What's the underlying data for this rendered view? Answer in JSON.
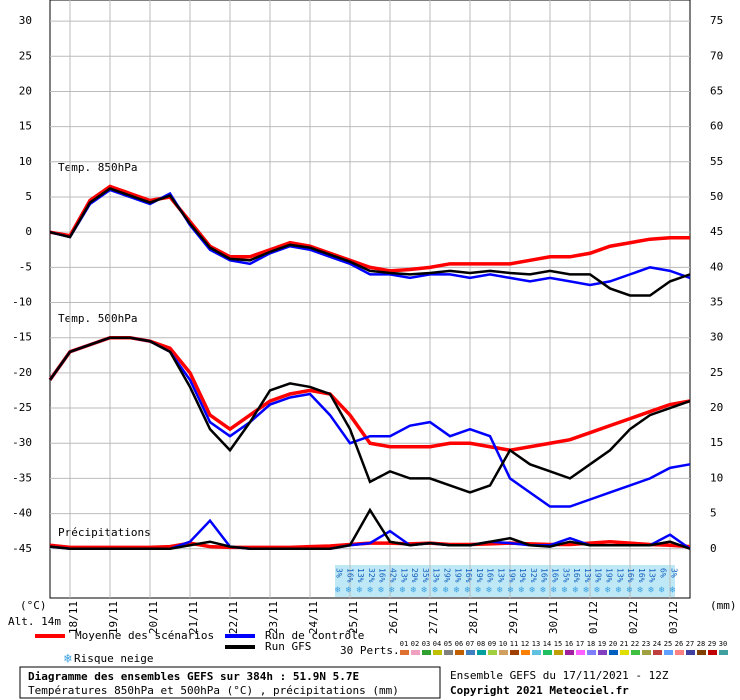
{
  "chart_data": {
    "type": "line",
    "ylabel": "(°C)",
    "y2label": "(mm)",
    "altitude": "Alt. 14m",
    "panel_labels": [
      "Temp. 850hPa",
      "Temp. 500hPa",
      "Précipitations"
    ],
    "xlim": [
      0,
      384
    ],
    "xticks": [
      {
        "value": 12,
        "label": "18/11"
      },
      {
        "value": 36,
        "label": "19/11"
      },
      {
        "value": 60,
        "label": "20/11"
      },
      {
        "value": 84,
        "label": "21/11"
      },
      {
        "value": 108,
        "label": "22/11"
      },
      {
        "value": 132,
        "label": "23/11"
      },
      {
        "value": 156,
        "label": "24/11"
      },
      {
        "value": 180,
        "label": "25/11"
      },
      {
        "value": 204,
        "label": "26/11"
      },
      {
        "value": 228,
        "label": "27/11"
      },
      {
        "value": 252,
        "label": "28/11"
      },
      {
        "value": 276,
        "label": "29/11"
      },
      {
        "value": 300,
        "label": "30/11"
      },
      {
        "value": 324,
        "label": "01/12"
      },
      {
        "value": 348,
        "label": "02/12"
      },
      {
        "value": 372,
        "label": "03/12"
      }
    ],
    "ylim": [
      -52,
      33
    ],
    "yticks": [
      -45,
      -40,
      -35,
      -30,
      -25,
      -20,
      -15,
      -10,
      -5,
      0,
      5,
      10,
      15,
      20,
      25,
      30
    ],
    "y2lim": [
      -7,
      78
    ],
    "y2ticks": [
      0,
      5,
      10,
      15,
      20,
      25,
      30,
      35,
      40,
      45,
      50,
      55,
      60,
      65,
      70,
      75
    ],
    "grid": true,
    "x": [
      0,
      12,
      24,
      36,
      48,
      60,
      72,
      84,
      96,
      108,
      120,
      132,
      144,
      156,
      168,
      180,
      192,
      204,
      216,
      228,
      240,
      252,
      264,
      276,
      288,
      300,
      312,
      324,
      336,
      348,
      360,
      372,
      384
    ],
    "series": [
      {
        "name": "Moyenne des scénarios",
        "color": "#ff0000",
        "values": [
          0,
          -0.5,
          4.5,
          6.5,
          5.5,
          4.5,
          5,
          1.5,
          -2,
          -3.5,
          -3.5,
          -2.5,
          -1.5,
          -2,
          -3,
          -4,
          -5,
          -5.5,
          -5.3,
          -5,
          -4.5,
          -4.5,
          -4.5,
          -4.5,
          -4,
          -3.5,
          -3.5,
          -3,
          -2,
          -1.5,
          -1,
          -0.8,
          -0.8
        ]
      },
      {
        "name": "Run de contrôle",
        "color": "#0000ff",
        "values": [
          0,
          -0.7,
          4,
          6,
          5,
          4,
          5.5,
          1,
          -2.5,
          -4,
          -4.5,
          -3,
          -2,
          -2.5,
          -3.5,
          -4.5,
          -6,
          -6,
          -6.5,
          -6,
          -6,
          -6.5,
          -6,
          -6.5,
          -7,
          -6.5,
          -7,
          -7.5,
          -7,
          -6,
          -5,
          -5.5,
          -6.5
        ]
      },
      {
        "name": "Run GFS",
        "color": "#000000",
        "values": [
          0,
          -0.7,
          4.2,
          6.2,
          5.2,
          4.2,
          5.2,
          1.2,
          -2.2,
          -3.8,
          -4,
          -2.8,
          -1.8,
          -2.2,
          -3.2,
          -4.2,
          -5.5,
          -5.8,
          -6,
          -5.8,
          -5.5,
          -5.8,
          -5.5,
          -5.8,
          -6,
          -5.5,
          -6,
          -6,
          -8,
          -9,
          -9,
          -7,
          -6
        ]
      },
      {
        "name": "Moyenne des scénarios",
        "color": "#ff0000",
        "values": [
          -21,
          -17,
          -16,
          -15,
          -15,
          -15.5,
          -16.5,
          -20,
          -26,
          -28,
          -26,
          -24,
          -23,
          -22.5,
          -23,
          -26,
          -30,
          -30.5,
          -30.5,
          -30.5,
          -30,
          -30,
          -30.5,
          -31,
          -30.5,
          -30,
          -29.5,
          -28.5,
          -27.5,
          -26.5,
          -25.5,
          -24.5,
          -24
        ]
      },
      {
        "name": "Run de contrôle",
        "color": "#0000ff",
        "values": [
          -21,
          -17,
          -16,
          -15,
          -15,
          -15.5,
          -17,
          -21,
          -27,
          -29,
          -27,
          -24.5,
          -23.5,
          -23,
          -26,
          -30,
          -29,
          -29,
          -27.5,
          -27,
          -29,
          -28,
          -29,
          -35,
          -37,
          -39,
          -39,
          -38,
          -37,
          -36,
          -35,
          -33.5,
          -33
        ]
      },
      {
        "name": "Run GFS",
        "color": "#000000",
        "values": [
          -21,
          -17,
          -16,
          -15,
          -15,
          -15.5,
          -17,
          -22,
          -28,
          -31,
          -27,
          -22.5,
          -21.5,
          -22,
          -23,
          -28,
          -35.5,
          -34,
          -35,
          -35,
          -36,
          -37,
          -36,
          -31,
          -33,
          -34,
          -35,
          -33,
          -31,
          -28,
          -26,
          -25,
          -24
        ]
      },
      {
        "name": "Moyenne des scénarios",
        "color": "#ff0000",
        "axis": "y2",
        "values": [
          0.5,
          0.2,
          0.2,
          0.2,
          0.2,
          0.2,
          0.3,
          0.8,
          0.3,
          0.2,
          0.2,
          0.2,
          0.2,
          0.3,
          0.4,
          0.6,
          0.8,
          0.8,
          0.7,
          0.8,
          0.6,
          0.6,
          0.7,
          0.8,
          0.7,
          0.6,
          0.6,
          0.8,
          1,
          0.8,
          0.6,
          0.5,
          0.3
        ]
      },
      {
        "name": "Run de contrôle",
        "color": "#0000ff",
        "axis": "y2",
        "values": [
          0.3,
          0,
          0,
          0,
          0,
          0,
          0,
          1,
          4,
          0.3,
          0,
          0,
          0,
          0,
          0,
          0.5,
          0.8,
          2.5,
          0.5,
          0.8,
          0.5,
          0.5,
          1,
          0.8,
          0.5,
          0.5,
          1.5,
          0.5,
          0.5,
          0.5,
          0.5,
          2,
          0
        ]
      },
      {
        "name": "Run GFS",
        "color": "#000000",
        "axis": "y2",
        "values": [
          0.3,
          0,
          0,
          0,
          0,
          0,
          0,
          0.5,
          1,
          0.3,
          0,
          0,
          0,
          0,
          0,
          0.5,
          5.5,
          1,
          0.5,
          0.8,
          0.5,
          0.5,
          1,
          1.5,
          0.5,
          0.3,
          1,
          0.5,
          0.5,
          0.5,
          0.5,
          1,
          0
        ]
      }
    ],
    "snow": {
      "label": "Risque neige",
      "values": [
        "3%",
        "16%",
        "13%",
        "32%",
        "16%",
        "42%",
        "13%",
        "29%",
        "35%",
        "13%",
        "29%",
        "19%",
        "16%",
        "19%",
        "16%",
        "13%",
        "19%",
        "19%",
        "32%",
        "16%",
        "16%",
        "35%",
        "16%",
        "13%",
        "19%",
        "19%",
        "13%",
        "16%",
        "16%",
        "13%",
        "6%",
        "3%"
      ]
    },
    "perts": {
      "label": "30 Perts.",
      "numbers": [
        "01",
        "02",
        "03",
        "04",
        "05",
        "06",
        "07",
        "08",
        "09",
        "10",
        "11",
        "12",
        "13",
        "14",
        "15",
        "16",
        "17",
        "18",
        "19",
        "20",
        "21",
        "22",
        "23",
        "24",
        "25",
        "26",
        "27",
        "28",
        "29",
        "30"
      ],
      "colors": [
        "#e07030",
        "#f0a0c0",
        "#30a030",
        "#c0c000",
        "#808080",
        "#c06000",
        "#4080c0",
        "#00a0a0",
        "#a0d040",
        "#d0a060",
        "#a04000",
        "#ff8000",
        "#60c0e0",
        "#20c060",
        "#c0a000",
        "#a020a0",
        "#ff60ff",
        "#8080ff",
        "#8040c0",
        "#0060c0",
        "#e0e000",
        "#40c040",
        "#a0a040",
        "#c04040",
        "#60a0ff",
        "#ff8080",
        "#4040a0",
        "#804000",
        "#c00000",
        "#40a0a0"
      ]
    },
    "footer": [
      "Diagramme des ensembles GEFS sur 384h : 51.9N 5.7E",
      "Températures 850hPa et 500hPa (°C) , précipitations (mm)",
      "Ensemble GEFS du 17/11/2021 - 12Z",
      "Copyright 2021 Meteociel.fr"
    ]
  }
}
